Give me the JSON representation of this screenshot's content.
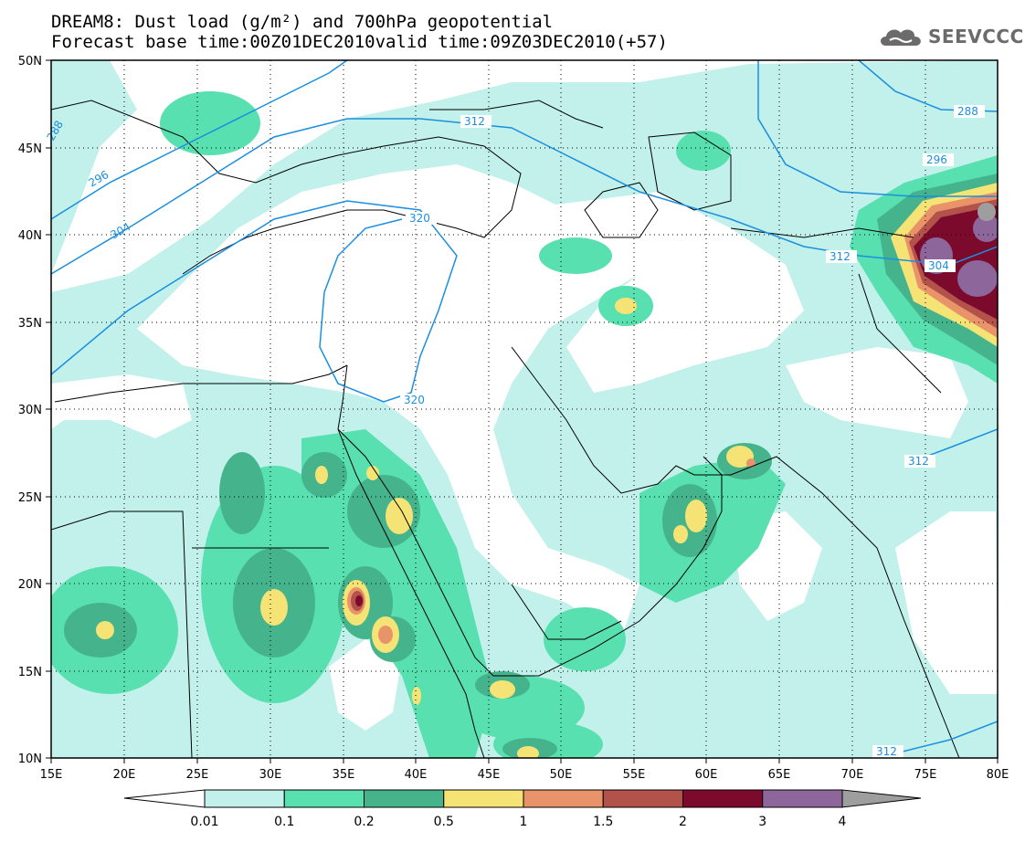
{
  "title_line1": "DREAM8: Dust load (g/m²) and 700hPa geopotential",
  "title_line2": "Forecast base time:00Z01DEC2010valid time:09Z03DEC2010(+57)",
  "logo": {
    "text": "SEEVCCC",
    "icon": "cloud-icon"
  },
  "map": {
    "lon_range": [
      15,
      80
    ],
    "lat_range": [
      10,
      50
    ],
    "lon_ticks": [
      "15E",
      "20E",
      "25E",
      "30E",
      "35E",
      "40E",
      "45E",
      "50E",
      "55E",
      "60E",
      "65E",
      "70E",
      "75E",
      "80E"
    ],
    "lat_ticks": [
      "10N",
      "15N",
      "20N",
      "25N",
      "30N",
      "35N",
      "40N",
      "45N",
      "50N"
    ],
    "geopotential_labels": [
      "312",
      "320",
      "320",
      "312",
      "304",
      "312",
      "312",
      "296",
      "288",
      "296",
      "304",
      "288"
    ]
  },
  "colorbar": {
    "labels": [
      "0.01",
      "0.1",
      "0.2",
      "0.5",
      "1",
      "1.5",
      "2",
      "3",
      "4"
    ],
    "colors": [
      "#c2f0ea",
      "#59e0b0",
      "#45b48d",
      "#f5e475",
      "#e9936a",
      "#b2524a",
      "#7c0a2c",
      "#8d679c",
      "#9e9e9e"
    ],
    "under_color": "#ffffff"
  },
  "colors": {
    "contour": "#1a8fe0",
    "land": "#ffffff"
  }
}
